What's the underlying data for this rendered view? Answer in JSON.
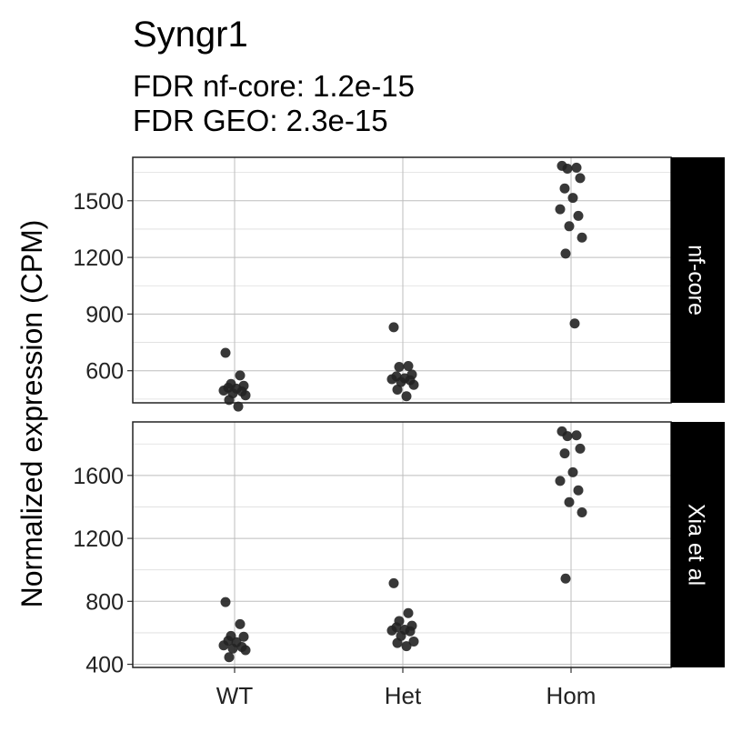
{
  "header": {
    "title": "Syngr1",
    "subtitle_line1": "FDR nf-core: 1.2e-15",
    "subtitle_line2": "FDR GEO: 2.3e-15"
  },
  "chart_data": {
    "type": "scatter",
    "ylabel": "Normalized expression (CPM)",
    "xlabel": "",
    "categories": [
      "WT",
      "Het",
      "Hom"
    ],
    "point_color": "#222222",
    "strip_color": "#000000",
    "strip_text_color": "#ffffff",
    "grid": true,
    "panels": [
      {
        "strip_label": "nf-core",
        "ylim": [
          430,
          1730
        ],
        "y_ticks": [
          600,
          900,
          1200,
          1500
        ],
        "series": [
          {
            "category": "WT",
            "values": [
              695,
              575,
              530,
              520,
              510,
              505,
              495,
              490,
              480,
              470,
              445,
              410
            ]
          },
          {
            "category": "Het",
            "values": [
              830,
              625,
              620,
              580,
              570,
              560,
              555,
              550,
              540,
              525,
              500,
              465
            ]
          },
          {
            "category": "Hom",
            "values": [
              1685,
              1675,
              1670,
              1620,
              1565,
              1515,
              1455,
              1420,
              1365,
              1305,
              1220,
              850
            ]
          }
        ]
      },
      {
        "strip_label": "Xia et al",
        "ylim": [
          380,
          1940
        ],
        "y_ticks": [
          400,
          800,
          1200,
          1600
        ],
        "series": [
          {
            "category": "WT",
            "values": [
              795,
              655,
              580,
              575,
              550,
              540,
              520,
              510,
              500,
              490,
              445
            ]
          },
          {
            "category": "Het",
            "values": [
              915,
              725,
              675,
              645,
              635,
              620,
              615,
              610,
              580,
              545,
              535,
              515
            ]
          },
          {
            "category": "Hom",
            "values": [
              1880,
              1855,
              1850,
              1770,
              1740,
              1620,
              1565,
              1505,
              1430,
              1365,
              945
            ]
          }
        ]
      }
    ]
  }
}
